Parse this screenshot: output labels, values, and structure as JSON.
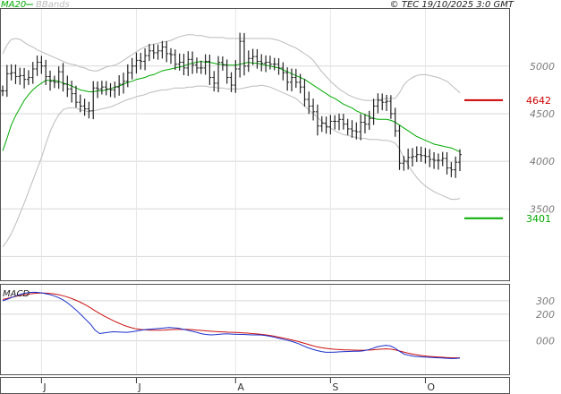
{
  "header": {
    "copyright": "© TEC 19/10/2025 3:0 GMT"
  },
  "legend": {
    "items": [
      {
        "label": "MA20",
        "color": "#00aa00"
      },
      {
        "label": "BBands",
        "color": "#bbbbbb"
      }
    ]
  },
  "macd_panel": {
    "label": "MACD"
  },
  "chart_data": [
    {
      "type": "candlestick",
      "panel": "price",
      "ylim": [
        2750,
        5600
      ],
      "y_ticks": [
        3500,
        4000,
        4500,
        5000
      ],
      "y_tick_labels": [
        "3500",
        "4000",
        "4500",
        "5000"
      ],
      "x_tick_labels": [
        "J",
        "J",
        "A",
        "S",
        "O"
      ],
      "x_tick_index": [
        9,
        31,
        54,
        76,
        98
      ],
      "grid": true,
      "series": [
        {
          "name": "Price",
          "color": "#222222",
          "values": [
            4740,
            4920,
            4930,
            4890,
            4900,
            4860,
            4880,
            4970,
            5040,
            5000,
            4890,
            4840,
            4830,
            4940,
            4810,
            4760,
            4710,
            4620,
            4580,
            4550,
            4530,
            4770,
            4760,
            4780,
            4760,
            4750,
            4780,
            4810,
            4840,
            4930,
            5000,
            5060,
            5050,
            5110,
            5160,
            5140,
            5160,
            5200,
            5130,
            5120,
            5020,
            5040,
            4980,
            5070,
            5010,
            4980,
            4980,
            5050,
            4880,
            4820,
            5040,
            5010,
            4880,
            4800,
            4970,
            5260,
            5000,
            5080,
            5100,
            5050,
            5030,
            5040,
            5020,
            5020,
            4980,
            4930,
            4830,
            4880,
            4830,
            4780,
            4650,
            4580,
            4520,
            4370,
            4400,
            4360,
            4420,
            4420,
            4440,
            4390,
            4340,
            4320,
            4310,
            4410,
            4390,
            4450,
            4580,
            4640,
            4620,
            4630,
            4500,
            4320,
            3980,
            4000,
            4040,
            4050,
            4070,
            4060,
            4050,
            4020,
            4010,
            4010,
            4030,
            3930,
            3910,
            3990,
            4070
          ]
        },
        {
          "name": "MA20",
          "color": "#00aa00",
          "values": [
            4110,
            4240,
            4380,
            4480,
            4560,
            4640,
            4700,
            4750,
            4790,
            4820,
            4850,
            4850,
            4850,
            4840,
            4820,
            4810,
            4790,
            4770,
            4750,
            4740,
            4730,
            4730,
            4740,
            4740,
            4750,
            4760,
            4780,
            4790,
            4810,
            4830,
            4840,
            4860,
            4870,
            4880,
            4900,
            4910,
            4930,
            4950,
            4960,
            4970,
            4980,
            4990,
            5000,
            5020,
            5030,
            5040,
            5050,
            5040,
            5040,
            5030,
            5020,
            5020,
            5010,
            5010,
            5010,
            5020,
            5030,
            5040,
            5030,
            5030,
            5020,
            5010,
            5000,
            4990,
            4980,
            4960,
            4940,
            4920,
            4900,
            4880,
            4860,
            4830,
            4800,
            4770,
            4740,
            4710,
            4680,
            4660,
            4630,
            4600,
            4580,
            4560,
            4530,
            4510,
            4490,
            4470,
            4450,
            4440,
            4440,
            4440,
            4430,
            4410,
            4380,
            4350,
            4320,
            4290,
            4260,
            4240,
            4220,
            4200,
            4180,
            4170,
            4160,
            4150,
            4140,
            4120,
            4100
          ]
        },
        {
          "name": "BBands upper",
          "color": "#bbbbbb",
          "values": [
            5130,
            5220,
            5280,
            5290,
            5280,
            5250,
            5220,
            5200,
            5170,
            5150,
            5130,
            5110,
            5090,
            5070,
            5050,
            5030,
            5020,
            5010,
            4990,
            4980,
            4960,
            4950,
            4950,
            4970,
            4990,
            5000,
            5010,
            5030,
            5060,
            5090,
            5120,
            5150,
            5180,
            5200,
            5220,
            5230,
            5240,
            5250,
            5260,
            5270,
            5290,
            5310,
            5320,
            5330,
            5330,
            5320,
            5320,
            5310,
            5300,
            5300,
            5300,
            5300,
            5290,
            5290,
            5290,
            5290,
            5290,
            5290,
            5290,
            5290,
            5290,
            5290,
            5290,
            5280,
            5270,
            5250,
            5230,
            5210,
            5190,
            5160,
            5130,
            5100,
            5060,
            5000,
            4940,
            4890,
            4840,
            4800,
            4760,
            4730,
            4700,
            4680,
            4660,
            4650,
            4640,
            4640,
            4640,
            4650,
            4650,
            4660,
            4660,
            4660,
            4720,
            4800,
            4850,
            4880,
            4900,
            4910,
            4910,
            4900,
            4890,
            4880,
            4860,
            4840,
            4800,
            4760,
            4720
          ]
        },
        {
          "name": "BBands lower",
          "color": "#bbbbbb",
          "values": [
            3100,
            3160,
            3240,
            3340,
            3450,
            3560,
            3680,
            3800,
            3920,
            4040,
            4180,
            4310,
            4410,
            4490,
            4540,
            4560,
            4560,
            4560,
            4540,
            4530,
            4520,
            4530,
            4540,
            4550,
            4560,
            4570,
            4590,
            4610,
            4630,
            4650,
            4660,
            4680,
            4690,
            4700,
            4720,
            4730,
            4740,
            4750,
            4750,
            4760,
            4770,
            4770,
            4770,
            4780,
            4780,
            4790,
            4790,
            4790,
            4780,
            4780,
            4770,
            4770,
            4760,
            4760,
            4760,
            4760,
            4770,
            4780,
            4790,
            4790,
            4800,
            4790,
            4780,
            4760,
            4740,
            4720,
            4700,
            4680,
            4660,
            4620,
            4580,
            4540,
            4500,
            4460,
            4420,
            4380,
            4350,
            4320,
            4300,
            4280,
            4270,
            4260,
            4250,
            4240,
            4240,
            4230,
            4230,
            4230,
            4220,
            4220,
            4210,
            4190,
            4130,
            4040,
            3960,
            3890,
            3830,
            3780,
            3740,
            3710,
            3680,
            3660,
            3640,
            3620,
            3600,
            3600,
            3610
          ]
        }
      ],
      "reference_lines": [
        {
          "value": 4642,
          "label": "4642",
          "color": "#cc0000"
        },
        {
          "value": 3401,
          "label": "3401",
          "color": "#00aa00"
        }
      ]
    },
    {
      "type": "line",
      "panel": "macd",
      "title": "MACD",
      "ylim": [
        -250,
        420
      ],
      "y_ticks": [
        300,
        200,
        0
      ],
      "y_tick_labels": [
        "300",
        "200",
        "000"
      ],
      "series": [
        {
          "name": "MACD",
          "color": "#1a2fcc",
          "values": [
            300,
            312,
            325,
            338,
            350,
            358,
            363,
            364,
            362,
            356,
            348,
            338,
            325,
            308,
            285,
            258,
            228,
            195,
            160,
            125,
            80,
            55,
            60,
            65,
            68,
            66,
            65,
            64,
            68,
            74,
            80,
            85,
            88,
            91,
            94,
            97,
            100,
            98,
            95,
            88,
            80,
            72,
            64,
            54,
            48,
            45,
            46,
            50,
            52,
            52,
            50,
            49,
            48,
            47,
            45,
            45,
            44,
            40,
            34,
            26,
            18,
            10,
            2,
            -8,
            -20,
            -35,
            -50,
            -62,
            -72,
            -80,
            -85,
            -85,
            -84,
            -82,
            -80,
            -79,
            -78,
            -77,
            -75,
            -68,
            -58,
            -45,
            -38,
            -33,
            -38,
            -55,
            -80,
            -100,
            -108,
            -115,
            -118,
            -120,
            -122,
            -124,
            -126,
            -128,
            -130,
            -132,
            -132,
            -129
          ]
        },
        {
          "name": "Signal",
          "color": "#cc1111",
          "values": [
            310,
            318,
            326,
            334,
            341,
            347,
            352,
            356,
            358,
            358,
            356,
            352,
            346,
            338,
            328,
            316,
            302,
            286,
            268,
            248,
            225,
            205,
            185,
            168,
            150,
            135,
            120,
            108,
            98,
            90,
            85,
            82,
            80,
            80,
            80,
            81,
            83,
            85,
            86,
            87,
            86,
            84,
            81,
            78,
            75,
            72,
            70,
            68,
            67,
            65,
            64,
            62,
            60,
            58,
            55,
            52,
            49,
            45,
            40,
            34,
            27,
            20,
            12,
            4,
            -5,
            -15,
            -25,
            -35,
            -44,
            -51,
            -56,
            -60,
            -63,
            -65,
            -67,
            -68,
            -69,
            -70,
            -70,
            -69,
            -67,
            -64,
            -62,
            -60,
            -62,
            -68,
            -76,
            -85,
            -93,
            -100,
            -106,
            -111,
            -115,
            -118,
            -120,
            -122,
            -124,
            -126,
            -127,
            -127
          ]
        }
      ]
    }
  ]
}
